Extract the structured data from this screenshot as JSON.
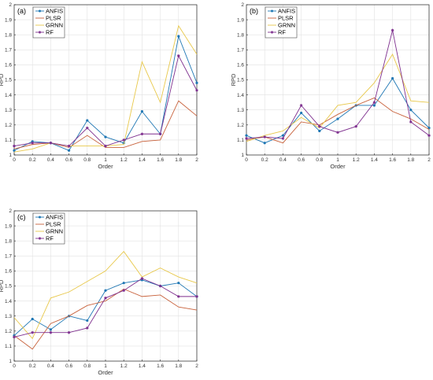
{
  "chart_data": [
    {
      "type": "line",
      "panel_label": "(a)",
      "xlabel": "Order",
      "ylabel": "RPD",
      "xlim": [
        0,
        2
      ],
      "ylim": [
        1.0,
        2.0
      ],
      "grid": true,
      "legend_position": "top-left",
      "x": [
        0,
        0.2,
        0.4,
        0.6,
        0.8,
        1,
        1.2,
        1.4,
        1.6,
        1.8,
        2
      ],
      "x_ticks": [
        "0",
        "0.2",
        "0.4",
        "0.6",
        "0.8",
        "1",
        "1.2",
        "1.4",
        "1.6",
        "1.8",
        "2"
      ],
      "y_ticks": [
        "1",
        "1.1",
        "1.2",
        "1.3",
        "1.4",
        "1.5",
        "1.6",
        "1.7",
        "1.8",
        "1.9",
        "2"
      ],
      "series": [
        {
          "name": "ANFIS",
          "color": "#1f77b4",
          "marker": "dot",
          "values": [
            1.03,
            1.09,
            1.08,
            1.03,
            1.23,
            1.12,
            1.08,
            1.29,
            1.14,
            1.79,
            1.48
          ]
        },
        {
          "name": "PLSR",
          "color": "#c8623c",
          "marker": "none",
          "values": [
            1.04,
            1.07,
            1.08,
            1.05,
            1.13,
            1.05,
            1.05,
            1.09,
            1.1,
            1.36,
            1.26
          ]
        },
        {
          "name": "GRNN",
          "color": "#e8c84a",
          "marker": "none",
          "values": [
            1.02,
            1.04,
            1.08,
            1.06,
            1.06,
            1.06,
            1.07,
            1.62,
            1.35,
            1.86,
            1.67
          ]
        },
        {
          "name": "RF",
          "color": "#7e2f8e",
          "marker": "star",
          "values": [
            1.06,
            1.08,
            1.08,
            1.06,
            1.18,
            1.06,
            1.1,
            1.14,
            1.14,
            1.66,
            1.43
          ]
        }
      ]
    },
    {
      "type": "line",
      "panel_label": "(b)",
      "xlabel": "Order",
      "ylabel": "RPD",
      "xlim": [
        0,
        2
      ],
      "ylim": [
        1.0,
        2.0
      ],
      "grid": true,
      "legend_position": "top-left",
      "x": [
        0,
        0.2,
        0.4,
        0.6,
        0.8,
        1,
        1.2,
        1.4,
        1.6,
        1.8,
        2
      ],
      "x_ticks": [
        "0",
        "0.2",
        "0.4",
        "0.6",
        "0.8",
        "1",
        "1.2",
        "1.4",
        "1.6",
        "1.8",
        "2"
      ],
      "y_ticks": [
        "1",
        "1.1",
        "1.2",
        "1.3",
        "1.4",
        "1.5",
        "1.6",
        "1.7",
        "1.8",
        "1.9",
        "2"
      ],
      "series": [
        {
          "name": "ANFIS",
          "color": "#1f77b4",
          "marker": "dot",
          "values": [
            1.13,
            1.08,
            1.13,
            1.28,
            1.16,
            1.24,
            1.33,
            1.33,
            1.51,
            1.3,
            1.18
          ]
        },
        {
          "name": "PLSR",
          "color": "#c8623c",
          "marker": "none",
          "values": [
            1.1,
            1.12,
            1.08,
            1.22,
            1.2,
            1.27,
            1.33,
            1.38,
            1.29,
            1.24,
            1.17
          ]
        },
        {
          "name": "GRNN",
          "color": "#e8c84a",
          "marker": "none",
          "values": [
            1.09,
            1.13,
            1.16,
            1.25,
            1.18,
            1.33,
            1.35,
            1.48,
            1.67,
            1.36,
            1.35
          ]
        },
        {
          "name": "RF",
          "color": "#7e2f8e",
          "marker": "star",
          "values": [
            1.11,
            1.12,
            1.11,
            1.33,
            1.19,
            1.15,
            1.19,
            1.35,
            1.83,
            1.22,
            1.13
          ]
        }
      ]
    },
    {
      "type": "line",
      "panel_label": "(c)",
      "xlabel": "Order",
      "ylabel": "RPD",
      "xlim": [
        0,
        2
      ],
      "ylim": [
        1.0,
        2.0
      ],
      "grid": true,
      "legend_position": "top-left",
      "x": [
        0,
        0.2,
        0.4,
        0.6,
        0.8,
        1,
        1.2,
        1.4,
        1.6,
        1.8,
        2
      ],
      "x_ticks": [
        "0",
        "0.2",
        "0.4",
        "0.6",
        "0.8",
        "1",
        "1.2",
        "1.4",
        "1.6",
        "1.8",
        "2"
      ],
      "y_ticks": [
        "1",
        "1.1",
        "1.2",
        "1.3",
        "1.4",
        "1.5",
        "1.6",
        "1.7",
        "1.8",
        "1.9",
        "2"
      ],
      "series": [
        {
          "name": "ANFIS",
          "color": "#1f77b4",
          "marker": "dot",
          "values": [
            1.17,
            1.28,
            1.21,
            1.3,
            1.27,
            1.47,
            1.52,
            1.54,
            1.5,
            1.52,
            1.43
          ]
        },
        {
          "name": "PLSR",
          "color": "#c8623c",
          "marker": "none",
          "values": [
            1.17,
            1.08,
            1.25,
            1.3,
            1.37,
            1.4,
            1.48,
            1.43,
            1.44,
            1.36,
            1.34
          ]
        },
        {
          "name": "GRNN",
          "color": "#e8c84a",
          "marker": "none",
          "values": [
            1.29,
            1.15,
            1.42,
            1.46,
            1.53,
            1.6,
            1.73,
            1.56,
            1.62,
            1.56,
            1.52
          ]
        },
        {
          "name": "RF",
          "color": "#7e2f8e",
          "marker": "star",
          "values": [
            1.16,
            1.19,
            1.19,
            1.19,
            1.22,
            1.42,
            1.47,
            1.55,
            1.5,
            1.43,
            1.43
          ]
        }
      ]
    }
  ]
}
